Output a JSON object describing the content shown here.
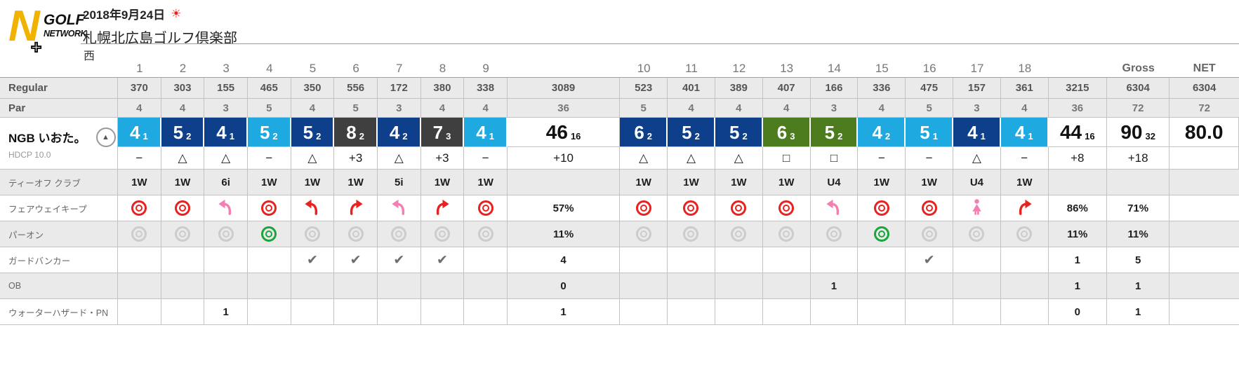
{
  "header": {
    "logo": {
      "mark": "N",
      "plus": "+",
      "golf": "GOLF",
      "network": "NETWORK"
    },
    "date": "2018年9月24日",
    "weather_icon": "sun",
    "course": "札幌北広島ゴルフ倶楽部",
    "nine": "西"
  },
  "player": {
    "name": "NGB いおた。",
    "hdcp": "HDCP 10.0"
  },
  "colors": {
    "par_cell": "#1FA9E1",
    "bogey_cell": "#0E3F8A",
    "double_cell": "#4C7C1E",
    "worse_cell": "#3F3F3F",
    "fairway_hit_red": "#E62320",
    "miss_pink": "#F27FB0",
    "paron_gray": "#CCCCCC",
    "paron_green": "#1BA63C",
    "logo_yellow": "#F1B300"
  },
  "table": {
    "col_headers": [
      "1",
      "2",
      "3",
      "4",
      "5",
      "6",
      "7",
      "8",
      "9",
      "",
      "10",
      "11",
      "12",
      "13",
      "14",
      "15",
      "16",
      "17",
      "18",
      "",
      "Gross",
      "NET"
    ],
    "rows": {
      "regular": {
        "label": "Regular",
        "cells": [
          "370",
          "303",
          "155",
          "465",
          "350",
          "556",
          "172",
          "380",
          "338",
          "3089",
          "523",
          "401",
          "389",
          "407",
          "166",
          "336",
          "475",
          "157",
          "361",
          "3215",
          "6304",
          "6304"
        ]
      },
      "par": {
        "label": "Par",
        "cells": [
          "4",
          "4",
          "3",
          "5",
          "4",
          "5",
          "3",
          "4",
          "4",
          "36",
          "5",
          "4",
          "4",
          "4",
          "3",
          "4",
          "5",
          "3",
          "4",
          "36",
          "72",
          "72"
        ]
      },
      "score": {
        "cells": [
          {
            "n": "4",
            "p": "1",
            "c": "par"
          },
          {
            "n": "5",
            "p": "2",
            "c": "bogey"
          },
          {
            "n": "4",
            "p": "1",
            "c": "bogey"
          },
          {
            "n": "5",
            "p": "2",
            "c": "par"
          },
          {
            "n": "5",
            "p": "2",
            "c": "bogey"
          },
          {
            "n": "8",
            "p": "2",
            "c": "worse"
          },
          {
            "n": "4",
            "p": "2",
            "c": "bogey"
          },
          {
            "n": "7",
            "p": "3",
            "c": "worse"
          },
          {
            "n": "4",
            "p": "1",
            "c": "par"
          },
          {
            "n": "46",
            "p": "16",
            "c": "total"
          },
          {
            "n": "6",
            "p": "2",
            "c": "bogey"
          },
          {
            "n": "5",
            "p": "2",
            "c": "bogey"
          },
          {
            "n": "5",
            "p": "2",
            "c": "bogey"
          },
          {
            "n": "6",
            "p": "3",
            "c": "double"
          },
          {
            "n": "5",
            "p": "2",
            "c": "double"
          },
          {
            "n": "4",
            "p": "2",
            "c": "par"
          },
          {
            "n": "5",
            "p": "1",
            "c": "par"
          },
          {
            "n": "4",
            "p": "1",
            "c": "bogey"
          },
          {
            "n": "4",
            "p": "1",
            "c": "par"
          },
          {
            "n": "44",
            "p": "16",
            "c": "total"
          },
          {
            "n": "90",
            "p": "32",
            "c": "total"
          },
          {
            "n": "80.0",
            "p": "",
            "c": "net"
          }
        ]
      },
      "symbols": {
        "cells": [
          "−",
          "△",
          "△",
          "−",
          "△",
          "+3",
          "△",
          "+3",
          "−",
          "+10",
          "△",
          "△",
          "△",
          "□",
          "□",
          "−",
          "−",
          "△",
          "−",
          "+8",
          "+18",
          ""
        ]
      },
      "tee": {
        "label": "ティーオフ クラブ",
        "cells": [
          "1W",
          "1W",
          "6i",
          "1W",
          "1W",
          "1W",
          "5i",
          "1W",
          "1W",
          "",
          "1W",
          "1W",
          "1W",
          "1W",
          "U4",
          "1W",
          "1W",
          "U4",
          "1W",
          "",
          "",
          ""
        ]
      },
      "fairway": {
        "label": "フェアウェイキープ",
        "cells": [
          "icon:target-red",
          "icon:target-red",
          "icon:arrow-left-pink",
          "icon:target-red",
          "icon:arrow-left-red",
          "icon:arrow-right-red",
          "icon:arrow-left-pink",
          "icon:arrow-right-red",
          "icon:target-red",
          "57%",
          "icon:target-red",
          "icon:target-red",
          "icon:target-red",
          "icon:target-red",
          "icon:arrow-left-pink",
          "icon:target-red",
          "icon:target-red",
          "icon:person-pink",
          "icon:arrow-right-red",
          "86%",
          "71%",
          ""
        ]
      },
      "paron": {
        "label": "パーオン",
        "cells": [
          "icon:target-gray",
          "icon:target-gray",
          "icon:target-gray",
          "icon:target-green",
          "icon:target-gray",
          "icon:target-gray",
          "icon:target-gray",
          "icon:target-gray",
          "icon:target-gray",
          "11%",
          "icon:target-gray",
          "icon:target-gray",
          "icon:target-gray",
          "icon:target-gray",
          "icon:target-gray",
          "icon:target-green",
          "icon:target-gray",
          "icon:target-gray",
          "icon:target-gray",
          "11%",
          "11%",
          ""
        ]
      },
      "bunker": {
        "label": "ガードバンカー",
        "cells": [
          "",
          "",
          "",
          "",
          "icon:check-gray",
          "icon:check-gray",
          "icon:check-gray",
          "icon:check-gray",
          "",
          "4",
          "",
          "",
          "",
          "",
          "",
          "",
          "icon:check-gray",
          "",
          "",
          "1",
          "5",
          ""
        ]
      },
      "ob": {
        "label": "OB",
        "cells": [
          "",
          "",
          "",
          "",
          "",
          "",
          "",
          "",
          "",
          "0",
          "",
          "",
          "",
          "",
          "1",
          "",
          "",
          "",
          "",
          "1",
          "1",
          ""
        ]
      },
      "water": {
        "label": "ウォーターハザード・PN",
        "cells": [
          "",
          "",
          "1",
          "",
          "",
          "",
          "",
          "",
          "",
          "1",
          "",
          "",
          "",
          "",
          "",
          "",
          "",
          "",
          "",
          "0",
          "1",
          ""
        ]
      }
    }
  }
}
